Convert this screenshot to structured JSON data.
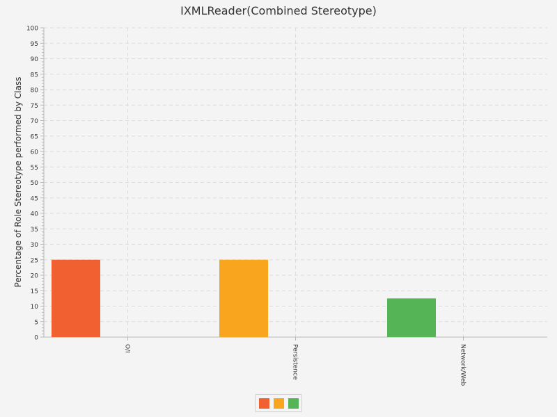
{
  "chart_data": {
    "type": "bar",
    "title": "IXMLReader(Combined Stereotype)",
    "ylabel": "Percentage of Role Stereotype performed by Class",
    "xlabel": "",
    "categories": [
      "O/I",
      "Persistence",
      "Network/Web"
    ],
    "values": [
      25,
      25,
      12.5
    ],
    "ylim": [
      0,
      100
    ],
    "y_major_step": 5,
    "y_minor_step": 1,
    "grid": true,
    "legend_position": "bottom",
    "colors": [
      "#f06030",
      "#f9a51e",
      "#55b455"
    ],
    "y_ticks": [
      "0",
      "5",
      "10",
      "15",
      "20",
      "25",
      "30",
      "35",
      "40",
      "45",
      "50",
      "55",
      "60",
      "65",
      "70",
      "75",
      "80",
      "85",
      "90",
      "95",
      "100"
    ]
  }
}
